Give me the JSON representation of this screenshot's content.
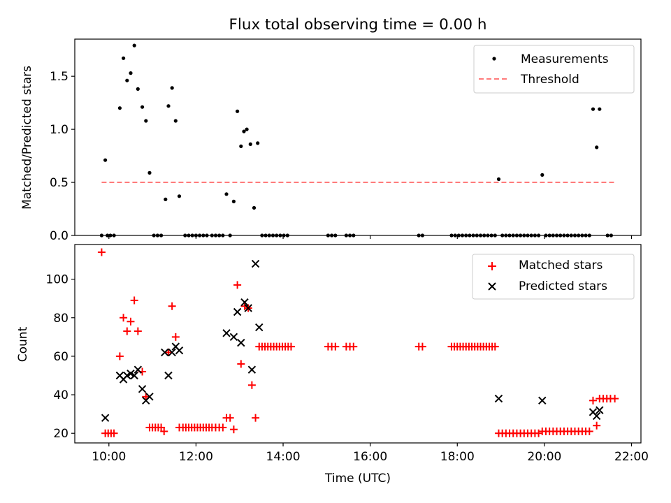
{
  "chart_data": [
    {
      "type": "scatter",
      "title": "Flux total observing time = 0.00 h",
      "xlabel": "",
      "ylabel": "Matched/Predicted stars",
      "xlim": [
        "09:13",
        "22:13"
      ],
      "ylim": [
        0,
        1.85
      ],
      "yticks": [
        0,
        0.5,
        1.0,
        1.5
      ],
      "ytick_labels": [
        "0.0",
        "0.5",
        "1.0",
        "1.5"
      ],
      "legend": {
        "placement": "top-right",
        "entries": [
          "Measurements",
          "Threshold"
        ]
      },
      "series": [
        {
          "name": "Measurements",
          "marker": "dot",
          "color": "#000000",
          "points": [
            [
              "09:50",
              0
            ],
            [
              "09:55",
              0.71
            ],
            [
              "09:58",
              0
            ],
            [
              "10:02",
              0
            ],
            [
              "10:07",
              0
            ],
            [
              "10:15",
              1.2
            ],
            [
              "10:20",
              1.67
            ],
            [
              "10:25",
              1.46
            ],
            [
              "10:30",
              1.53
            ],
            [
              "10:35",
              1.79
            ],
            [
              "10:40",
              1.38
            ],
            [
              "10:46",
              1.21
            ],
            [
              "10:51",
              1.08
            ],
            [
              "10:56",
              0.59
            ],
            [
              "11:02",
              0
            ],
            [
              "11:07",
              0
            ],
            [
              "11:12",
              0
            ],
            [
              "11:18",
              0.34
            ],
            [
              "11:22",
              1.22
            ],
            [
              "11:27",
              1.39
            ],
            [
              "11:32",
              1.08
            ],
            [
              "11:37",
              0.37
            ],
            [
              "11:45",
              0
            ],
            [
              "11:50",
              0
            ],
            [
              "11:55",
              0
            ],
            [
              "12:00",
              0
            ],
            [
              "12:05",
              0
            ],
            [
              "12:10",
              0
            ],
            [
              "12:15",
              0
            ],
            [
              "12:22",
              0
            ],
            [
              "12:27",
              0
            ],
            [
              "12:32",
              0
            ],
            [
              "12:37",
              0
            ],
            [
              "12:42",
              0.39
            ],
            [
              "12:47",
              0
            ],
            [
              "12:52",
              0.32
            ],
            [
              "12:57",
              1.17
            ],
            [
              "13:02",
              0.84
            ],
            [
              "13:06",
              0.98
            ],
            [
              "13:10",
              1.0
            ],
            [
              "13:15",
              0.86
            ],
            [
              "13:20",
              0.26
            ],
            [
              "13:25",
              0.87
            ],
            [
              "13:31",
              0
            ],
            [
              "13:36",
              0
            ],
            [
              "13:41",
              0
            ],
            [
              "13:46",
              0
            ],
            [
              "13:51",
              0
            ],
            [
              "13:56",
              0
            ],
            [
              "14:01",
              0
            ],
            [
              "14:06",
              0
            ],
            [
              "15:02",
              0
            ],
            [
              "15:07",
              0
            ],
            [
              "15:12",
              0
            ],
            [
              "15:27",
              0
            ],
            [
              "15:32",
              0
            ],
            [
              "15:37",
              0
            ],
            [
              "17:07",
              0
            ],
            [
              "17:12",
              0
            ],
            [
              "17:52",
              0
            ],
            [
              "17:57",
              0
            ],
            [
              "18:02",
              0
            ],
            [
              "18:07",
              0
            ],
            [
              "18:12",
              0
            ],
            [
              "18:17",
              0
            ],
            [
              "18:22",
              0
            ],
            [
              "18:27",
              0
            ],
            [
              "18:32",
              0
            ],
            [
              "18:37",
              0
            ],
            [
              "18:42",
              0
            ],
            [
              "18:47",
              0
            ],
            [
              "18:52",
              0
            ],
            [
              "18:57",
              0.53
            ],
            [
              "19:02",
              0
            ],
            [
              "19:07",
              0
            ],
            [
              "19:12",
              0
            ],
            [
              "19:17",
              0
            ],
            [
              "19:22",
              0
            ],
            [
              "19:27",
              0
            ],
            [
              "19:32",
              0
            ],
            [
              "19:37",
              0
            ],
            [
              "19:42",
              0
            ],
            [
              "19:47",
              0
            ],
            [
              "19:52",
              0
            ],
            [
              "19:57",
              0.57
            ],
            [
              "20:02",
              0
            ],
            [
              "20:07",
              0
            ],
            [
              "20:12",
              0
            ],
            [
              "20:17",
              0
            ],
            [
              "20:22",
              0
            ],
            [
              "20:27",
              0
            ],
            [
              "20:32",
              0
            ],
            [
              "20:37",
              0
            ],
            [
              "20:42",
              0
            ],
            [
              "20:47",
              0
            ],
            [
              "20:52",
              0
            ],
            [
              "20:57",
              0
            ],
            [
              "21:02",
              0
            ],
            [
              "21:07",
              1.19
            ],
            [
              "21:12",
              0.83
            ],
            [
              "21:16",
              1.19
            ],
            [
              "21:27",
              0
            ],
            [
              "21:32",
              0
            ]
          ]
        },
        {
          "name": "Threshold",
          "style": "dashed",
          "color": "#ff7b7b",
          "points": [
            [
              "09:50",
              0.5
            ],
            [
              "21:37",
              0.5
            ]
          ]
        }
      ]
    },
    {
      "type": "scatter",
      "title": "",
      "xlabel": "Time (UTC)",
      "ylabel": "Count",
      "xlim": [
        "09:13",
        "22:13"
      ],
      "ylim": [
        15,
        118
      ],
      "xticks": [
        "10:00",
        "12:00",
        "14:00",
        "16:00",
        "18:00",
        "20:00",
        "22:00"
      ],
      "yticks": [
        20,
        40,
        60,
        80,
        100
      ],
      "ytick_labels": [
        "20",
        "40",
        "60",
        "80",
        "100"
      ],
      "legend": {
        "placement": "top-right",
        "entries": [
          "Matched stars",
          "Predicted stars"
        ]
      },
      "series": [
        {
          "name": "Matched stars",
          "marker": "plus",
          "color": "#ff0000",
          "points": [
            [
              "09:50",
              114
            ],
            [
              "09:55",
              20
            ],
            [
              "09:59",
              20
            ],
            [
              "10:03",
              20
            ],
            [
              "10:07",
              20
            ],
            [
              "10:15",
              60
            ],
            [
              "10:20",
              80
            ],
            [
              "10:25",
              73
            ],
            [
              "10:30",
              78
            ],
            [
              "10:35",
              89
            ],
            [
              "10:40",
              73
            ],
            [
              "10:46",
              52
            ],
            [
              "10:51",
              39
            ],
            [
              "10:56",
              23
            ],
            [
              "11:00",
              23
            ],
            [
              "11:04",
              23
            ],
            [
              "11:08",
              23
            ],
            [
              "11:12",
              23
            ],
            [
              "11:16",
              21
            ],
            [
              "11:22",
              62
            ],
            [
              "11:27",
              86
            ],
            [
              "11:32",
              70
            ],
            [
              "11:37",
              23
            ],
            [
              "11:42",
              23
            ],
            [
              "11:46",
              23
            ],
            [
              "11:50",
              23
            ],
            [
              "11:54",
              23
            ],
            [
              "11:58",
              23
            ],
            [
              "12:02",
              23
            ],
            [
              "12:06",
              23
            ],
            [
              "12:10",
              23
            ],
            [
              "12:14",
              23
            ],
            [
              "12:18",
              23
            ],
            [
              "12:22",
              23
            ],
            [
              "12:27",
              23
            ],
            [
              "12:32",
              23
            ],
            [
              "12:37",
              23
            ],
            [
              "12:42",
              28
            ],
            [
              "12:47",
              28
            ],
            [
              "12:52",
              22
            ],
            [
              "12:57",
              97
            ],
            [
              "13:02",
              56
            ],
            [
              "13:07",
              86
            ],
            [
              "13:12",
              85
            ],
            [
              "13:17",
              45
            ],
            [
              "13:22",
              28
            ],
            [
              "13:27",
              65
            ],
            [
              "13:31",
              65
            ],
            [
              "13:35",
              65
            ],
            [
              "13:39",
              65
            ],
            [
              "13:43",
              65
            ],
            [
              "13:47",
              65
            ],
            [
              "13:51",
              65
            ],
            [
              "13:55",
              65
            ],
            [
              "13:59",
              65
            ],
            [
              "14:03",
              65
            ],
            [
              "14:07",
              65
            ],
            [
              "14:11",
              65
            ],
            [
              "15:02",
              65
            ],
            [
              "15:07",
              65
            ],
            [
              "15:12",
              65
            ],
            [
              "15:27",
              65
            ],
            [
              "15:32",
              65
            ],
            [
              "15:37",
              65
            ],
            [
              "17:07",
              65
            ],
            [
              "17:12",
              65
            ],
            [
              "17:52",
              65
            ],
            [
              "17:56",
              65
            ],
            [
              "18:00",
              65
            ],
            [
              "18:04",
              65
            ],
            [
              "18:08",
              65
            ],
            [
              "18:12",
              65
            ],
            [
              "18:16",
              65
            ],
            [
              "18:20",
              65
            ],
            [
              "18:24",
              65
            ],
            [
              "18:28",
              65
            ],
            [
              "18:32",
              65
            ],
            [
              "18:36",
              65
            ],
            [
              "18:40",
              65
            ],
            [
              "18:44",
              65
            ],
            [
              "18:48",
              65
            ],
            [
              "18:52",
              65
            ],
            [
              "18:57",
              20
            ],
            [
              "19:02",
              20
            ],
            [
              "19:07",
              20
            ],
            [
              "19:12",
              20
            ],
            [
              "19:17",
              20
            ],
            [
              "19:22",
              20
            ],
            [
              "19:27",
              20
            ],
            [
              "19:32",
              20
            ],
            [
              "19:37",
              20
            ],
            [
              "19:42",
              20
            ],
            [
              "19:47",
              20
            ],
            [
              "19:52",
              20
            ],
            [
              "19:57",
              21
            ],
            [
              "20:02",
              21
            ],
            [
              "20:07",
              21
            ],
            [
              "20:12",
              21
            ],
            [
              "20:17",
              21
            ],
            [
              "20:22",
              21
            ],
            [
              "20:27",
              21
            ],
            [
              "20:32",
              21
            ],
            [
              "20:37",
              21
            ],
            [
              "20:42",
              21
            ],
            [
              "20:47",
              21
            ],
            [
              "20:52",
              21
            ],
            [
              "20:57",
              21
            ],
            [
              "21:02",
              21
            ],
            [
              "21:07",
              37
            ],
            [
              "21:12",
              24
            ],
            [
              "21:16",
              38
            ],
            [
              "21:21",
              38
            ],
            [
              "21:26",
              38
            ],
            [
              "21:31",
              38
            ],
            [
              "21:37",
              38
            ]
          ]
        },
        {
          "name": "Predicted stars",
          "marker": "x",
          "color": "#000000",
          "points": [
            [
              "09:55",
              28
            ],
            [
              "10:15",
              50
            ],
            [
              "10:20",
              48
            ],
            [
              "10:25",
              50
            ],
            [
              "10:30",
              51
            ],
            [
              "10:35",
              50
            ],
            [
              "10:40",
              53
            ],
            [
              "10:46",
              43
            ],
            [
              "10:51",
              37
            ],
            [
              "10:56",
              39
            ],
            [
              "11:17",
              62
            ],
            [
              "11:22",
              50
            ],
            [
              "11:27",
              62
            ],
            [
              "11:32",
              65
            ],
            [
              "11:37",
              63
            ],
            [
              "12:42",
              72
            ],
            [
              "12:52",
              70
            ],
            [
              "12:57",
              83
            ],
            [
              "13:02",
              67
            ],
            [
              "13:07",
              88
            ],
            [
              "13:12",
              85
            ],
            [
              "13:17",
              53
            ],
            [
              "13:22",
              108
            ],
            [
              "13:27",
              75
            ],
            [
              "18:57",
              38
            ],
            [
              "19:57",
              37
            ],
            [
              "21:07",
              31
            ],
            [
              "21:12",
              29
            ],
            [
              "21:16",
              32
            ]
          ]
        }
      ]
    }
  ]
}
